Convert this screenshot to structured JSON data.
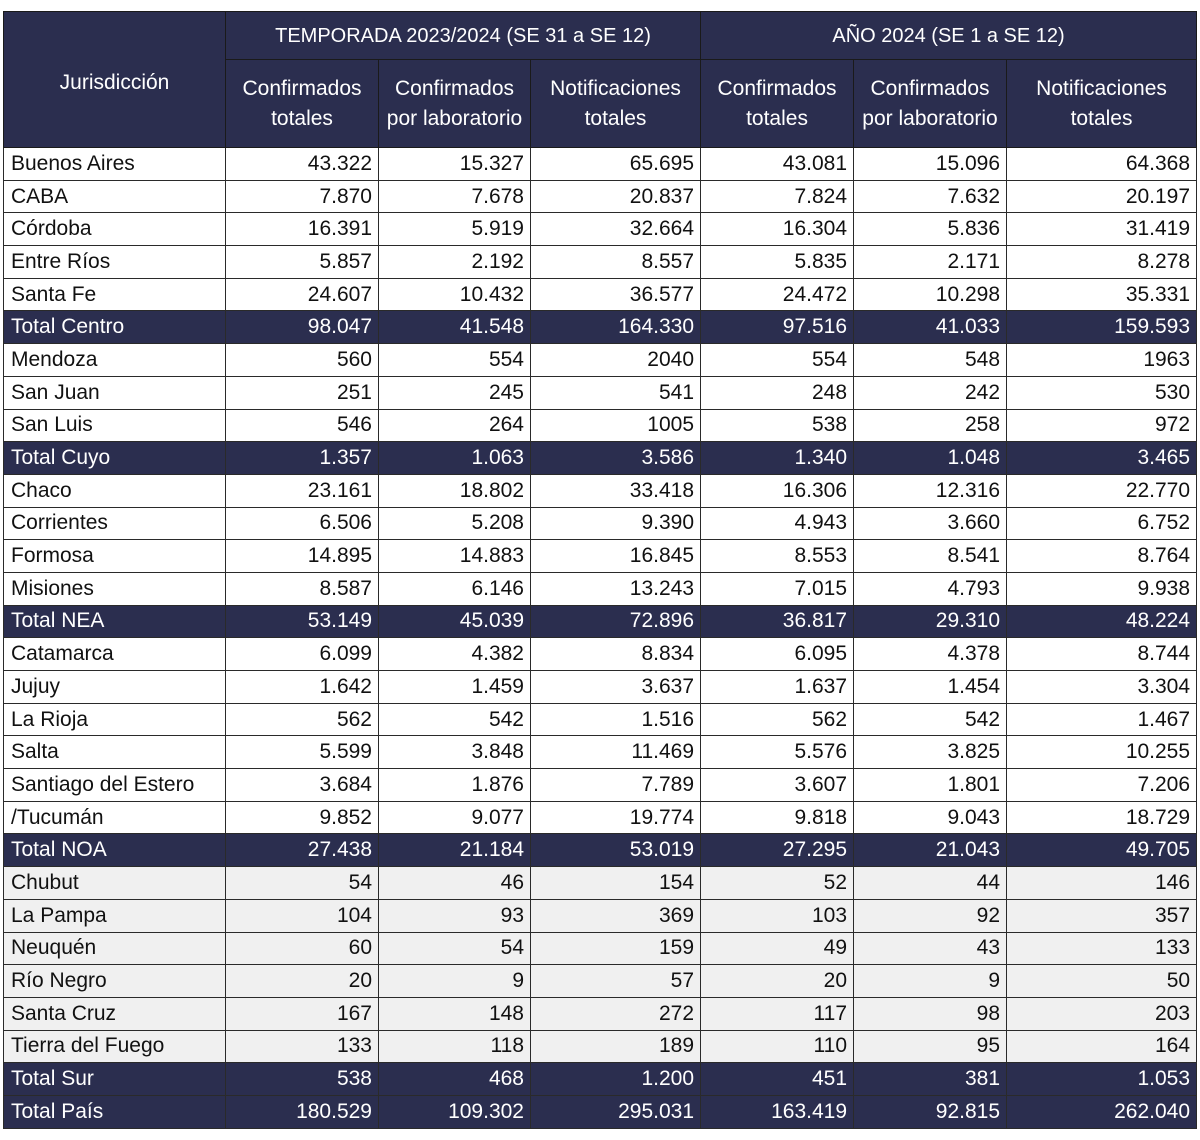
{
  "header": {
    "jurisdiccion": "Jurisdicción",
    "group1": "TEMPORADA 2023/2024 (SE 31 a SE 12)",
    "group2": "AÑO 2024 (SE 1 a SE 12)",
    "cols": [
      "Confirmados totales",
      "Confirmados por laboratorio",
      "Notificaciones totales",
      "Confirmados totales",
      "Confirmados por laboratorio",
      "Notificaciones totales"
    ]
  },
  "colors": {
    "header_bg": "#2b2e4f",
    "total_bg": "#2b2e4f",
    "sur_bg": "#f0f0f0"
  },
  "rows": [
    {
      "type": "row",
      "name": "Buenos Aires",
      "v": [
        "43.322",
        "15.327",
        "65.695",
        "43.081",
        "15.096",
        "64.368"
      ]
    },
    {
      "type": "row",
      "name": "CABA",
      "v": [
        "7.870",
        "7.678",
        "20.837",
        "7.824",
        "7.632",
        "20.197"
      ]
    },
    {
      "type": "row",
      "name": "Córdoba",
      "v": [
        "16.391",
        "5.919",
        "32.664",
        "16.304",
        "5.836",
        "31.419"
      ]
    },
    {
      "type": "row",
      "name": "Entre Ríos",
      "v": [
        "5.857",
        "2.192",
        "8.557",
        "5.835",
        "2.171",
        "8.278"
      ]
    },
    {
      "type": "row",
      "name": "Santa Fe",
      "v": [
        "24.607",
        "10.432",
        "36.577",
        "24.472",
        "10.298",
        "35.331"
      ]
    },
    {
      "type": "total",
      "name": "Total Centro",
      "v": [
        "98.047",
        "41.548",
        "164.330",
        "97.516",
        "41.033",
        "159.593"
      ]
    },
    {
      "type": "row",
      "name": "Mendoza",
      "v": [
        "560",
        "554",
        "2040",
        "554",
        "548",
        "1963"
      ]
    },
    {
      "type": "row",
      "name": "San Juan",
      "v": [
        "251",
        "245",
        "541",
        "248",
        "242",
        "530"
      ]
    },
    {
      "type": "row",
      "name": "San Luis",
      "v": [
        "546",
        "264",
        "1005",
        "538",
        "258",
        "972"
      ]
    },
    {
      "type": "total",
      "name": "Total Cuyo",
      "v": [
        "1.357",
        "1.063",
        "3.586",
        "1.340",
        "1.048",
        "3.465"
      ]
    },
    {
      "type": "row",
      "name": "Chaco",
      "v": [
        "23.161",
        "18.802",
        "33.418",
        "16.306",
        "12.316",
        "22.770"
      ]
    },
    {
      "type": "row",
      "name": "Corrientes",
      "v": [
        "6.506",
        "5.208",
        "9.390",
        "4.943",
        "3.660",
        "6.752"
      ]
    },
    {
      "type": "row",
      "name": "Formosa",
      "v": [
        "14.895",
        "14.883",
        "16.845",
        "8.553",
        "8.541",
        "8.764"
      ]
    },
    {
      "type": "row",
      "name": "Misiones",
      "v": [
        "8.587",
        "6.146",
        "13.243",
        "7.015",
        "4.793",
        "9.938"
      ]
    },
    {
      "type": "total",
      "name": "Total NEA",
      "v": [
        "53.149",
        "45.039",
        "72.896",
        "36.817",
        "29.310",
        "48.224"
      ]
    },
    {
      "type": "row",
      "name": "Catamarca",
      "v": [
        "6.099",
        "4.382",
        "8.834",
        "6.095",
        "4.378",
        "8.744"
      ]
    },
    {
      "type": "row",
      "name": "Jujuy",
      "v": [
        "1.642",
        "1.459",
        "3.637",
        "1.637",
        "1.454",
        "3.304"
      ]
    },
    {
      "type": "row",
      "name": "La Rioja",
      "v": [
        "562",
        "542",
        "1.516",
        "562",
        "542",
        "1.467"
      ]
    },
    {
      "type": "row",
      "name": "Salta",
      "v": [
        "5.599",
        "3.848",
        "11.469",
        "5.576",
        "3.825",
        "10.255"
      ]
    },
    {
      "type": "row",
      "name": "Santiago del Estero",
      "v": [
        "3.684",
        "1.876",
        "7.789",
        "3.607",
        "1.801",
        "7.206"
      ]
    },
    {
      "type": "row",
      "name": "/Tucumán",
      "v": [
        "9.852",
        "9.077",
        "19.774",
        "9.818",
        "9.043",
        "18.729"
      ]
    },
    {
      "type": "total",
      "name": "Total NOA",
      "v": [
        "27.438",
        "21.184",
        "53.019",
        "27.295",
        "21.043",
        "49.705"
      ]
    },
    {
      "type": "row sur",
      "name": "Chubut",
      "v": [
        "54",
        "46",
        "154",
        "52",
        "44",
        "146"
      ]
    },
    {
      "type": "row sur",
      "name": "La Pampa",
      "v": [
        "104",
        "93",
        "369",
        "103",
        "92",
        "357"
      ]
    },
    {
      "type": "row sur",
      "name": "Neuquén",
      "v": [
        "60",
        "54",
        "159",
        "49",
        "43",
        "133"
      ]
    },
    {
      "type": "row sur",
      "name": "Río Negro",
      "v": [
        "20",
        "9",
        "57",
        "20",
        "9",
        "50"
      ]
    },
    {
      "type": "row sur",
      "name": "Santa Cruz",
      "v": [
        "167",
        "148",
        "272",
        "117",
        "98",
        "203"
      ]
    },
    {
      "type": "row sur",
      "name": "Tierra del Fuego",
      "v": [
        "133",
        "118",
        "189",
        "110",
        "95",
        "164"
      ]
    },
    {
      "type": "total",
      "name": "Total Sur",
      "v": [
        "538",
        "468",
        "1.200",
        "451",
        "381",
        "1.053"
      ]
    },
    {
      "type": "total",
      "name": "Total País",
      "v": [
        "180.529",
        "109.302",
        "295.031",
        "163.419",
        "92.815",
        "262.040"
      ]
    }
  ]
}
